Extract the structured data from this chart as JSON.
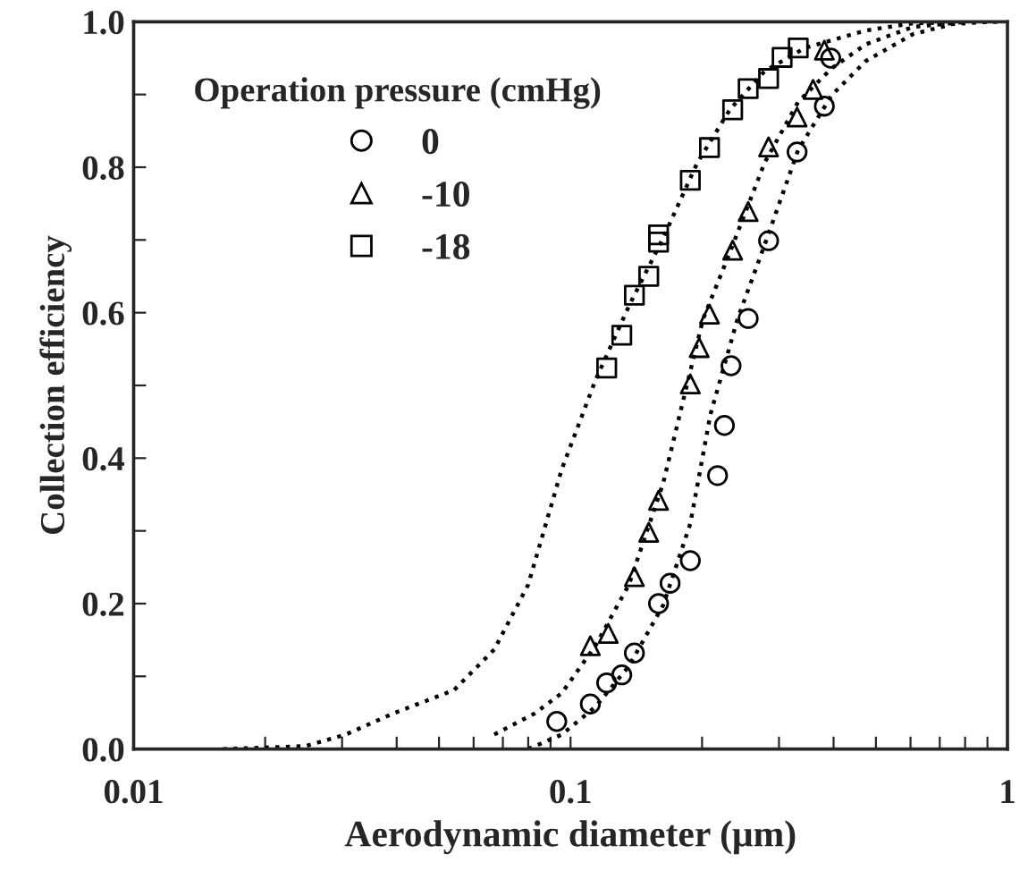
{
  "chart_data": {
    "type": "scatter",
    "xlabel": "Aerodynamic diameter (μm)",
    "ylabel": "Collection efficiency",
    "legend_title": "Operation pressure (cmHg)",
    "legend": "top left",
    "log": "x",
    "grid": false,
    "xlim": [
      0.01,
      1
    ],
    "ylim": [
      0,
      1
    ],
    "xticks": [
      0.01,
      {
        "value": 0.02,
        "label": null
      },
      {
        "value": 0.03,
        "label": null
      },
      {
        "value": 0.04,
        "label": null
      },
      {
        "value": 0.05,
        "label": null
      },
      {
        "value": 0.06,
        "label": null
      },
      {
        "value": 0.07,
        "label": null
      },
      {
        "value": 0.08,
        "label": null
      },
      {
        "value": 0.09,
        "label": null
      },
      0.1,
      {
        "value": 0.2,
        "label": null
      },
      {
        "value": 0.3,
        "label": null
      },
      {
        "value": 0.4,
        "label": null
      },
      {
        "value": 0.5,
        "label": null
      },
      {
        "value": 0.6,
        "label": null
      },
      {
        "value": 0.7,
        "label": null
      },
      {
        "value": 0.8,
        "label": null
      },
      {
        "value": 0.9,
        "label": null
      },
      1
    ],
    "yticks": [
      {
        "value": 0,
        "label": "0.0"
      },
      {
        "value": 0.1,
        "label": null
      },
      0.2,
      {
        "value": 0.3,
        "label": null
      },
      0.4,
      {
        "value": 0.5,
        "label": null
      },
      0.6,
      {
        "value": 0.7,
        "label": null
      },
      0.8,
      {
        "value": 0.9,
        "label": null
      },
      {
        "value": 1,
        "label": "1.0"
      }
    ],
    "series": [
      {
        "name": "0",
        "marker": "circle",
        "color": "#000000",
        "x": [
          0.093,
          0.111,
          0.121,
          0.131,
          0.14,
          0.159,
          0.169,
          0.188,
          0.217,
          0.225,
          0.233,
          0.255,
          0.284,
          0.33,
          0.381,
          0.394
        ],
        "values": [
          0.038,
          0.062,
          0.091,
          0.102,
          0.132,
          0.2,
          0.228,
          0.259,
          0.376,
          0.445,
          0.527,
          0.592,
          0.699,
          0.821,
          0.884,
          0.95
        ]
      },
      {
        "name": "-10",
        "marker": "triangle",
        "color": "#000000",
        "x": [
          0.111,
          0.122,
          0.14,
          0.151,
          0.159,
          0.188,
          0.197,
          0.208,
          0.235,
          0.255,
          0.284,
          0.33,
          0.359,
          0.381
        ],
        "values": [
          0.142,
          0.159,
          0.237,
          0.298,
          0.342,
          0.502,
          0.552,
          0.598,
          0.686,
          0.739,
          0.828,
          0.869,
          0.907,
          0.961
        ]
      },
      {
        "name": "-18",
        "marker": "square",
        "color": "#000000",
        "x": [
          0.121,
          0.131,
          0.14,
          0.151,
          0.159,
          0.159,
          0.188,
          0.208,
          0.235,
          0.255,
          0.284,
          0.305,
          0.332
        ],
        "values": [
          0.524,
          0.569,
          0.624,
          0.65,
          0.697,
          0.707,
          0.782,
          0.827,
          0.879,
          0.908,
          0.922,
          0.951,
          0.964
        ]
      },
      {
        "type": "line",
        "line_style": "dotted",
        "marker": "none",
        "color": "#000000",
        "x": [
          0.016,
          0.0247,
          0.0306,
          0.0393,
          0.0541,
          0.0669,
          0.08,
          0.0955,
          0.114,
          0.136,
          0.163,
          0.195,
          0.232,
          0.278,
          0.344,
          0.474,
          0.608,
          0.97
        ],
        "values": [
          0,
          0.004,
          0.02,
          0.049,
          0.081,
          0.137,
          0.226,
          0.385,
          0.507,
          0.609,
          0.703,
          0.806,
          0.88,
          0.932,
          0.964,
          0.988,
          0.998,
          1.0
        ]
      },
      {
        "type": "line",
        "line_style": "dotted",
        "marker": "none",
        "color": "#000000",
        "x": [
          0.0669,
          0.0828,
          0.0955,
          0.114,
          0.136,
          0.163,
          0.181,
          0.201,
          0.232,
          0.278,
          0.332,
          0.396,
          0.474,
          0.608,
          0.808
        ],
        "values": [
          0.02,
          0.049,
          0.077,
          0.142,
          0.226,
          0.366,
          0.479,
          0.591,
          0.684,
          0.806,
          0.89,
          0.936,
          0.969,
          0.993,
          1.0
        ]
      },
      {
        "type": "line",
        "line_style": "dotted",
        "marker": "none",
        "color": "#000000",
        "x": [
          0.08,
          0.0955,
          0.114,
          0.136,
          0.163,
          0.188,
          0.209,
          0.241,
          0.278,
          0.332,
          0.396,
          0.474,
          0.608,
          0.752,
          0.9
        ],
        "values": [
          0,
          0.02,
          0.058,
          0.114,
          0.198,
          0.31,
          0.46,
          0.591,
          0.693,
          0.824,
          0.899,
          0.946,
          0.983,
          0.997,
          1.0
        ]
      }
    ]
  }
}
